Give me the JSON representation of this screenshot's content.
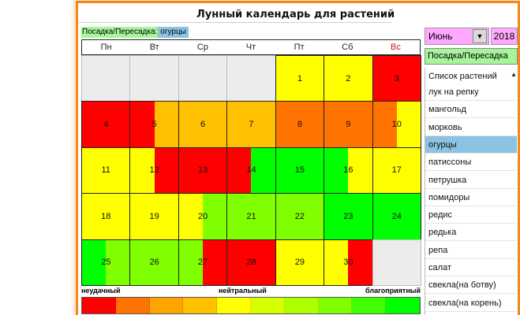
{
  "title": "Лунный календарь для растений",
  "action_row": {
    "action_label": "Посадка/Пересадка:",
    "plant_label": "огурцы"
  },
  "month_select": {
    "value": "Июнь"
  },
  "year_field": {
    "value": "2018"
  },
  "action_button": {
    "label": "Посадка/Пересадка"
  },
  "weekdays": [
    "Пн",
    "Вт",
    "Ср",
    "Чт",
    "Пт",
    "Сб",
    "Вс"
  ],
  "weeks": [
    [
      null,
      null,
      null,
      null,
      {
        "day": "1",
        "fill": [
          "#ffff00"
        ]
      },
      {
        "day": "2",
        "fill": [
          "#ffff00"
        ]
      },
      {
        "day": "3",
        "fill": [
          "#ff0000"
        ]
      }
    ],
    [
      {
        "day": "4",
        "fill": [
          "#ff0000"
        ]
      },
      {
        "day": "5",
        "fill": [
          "#ff0000",
          "#ffc000"
        ]
      },
      {
        "day": "6",
        "fill": [
          "#ffc000"
        ]
      },
      {
        "day": "7",
        "fill": [
          "#ffc000"
        ]
      },
      {
        "day": "8",
        "fill": [
          "#ff7300"
        ]
      },
      {
        "day": "9",
        "fill": [
          "#ff7300"
        ]
      },
      {
        "day": "10",
        "fill": [
          "#ff7300",
          "#ffff00"
        ]
      }
    ],
    [
      {
        "day": "11",
        "fill": [
          "#ffff00"
        ]
      },
      {
        "day": "12",
        "fill": [
          "#ffff00",
          "#ff0000"
        ]
      },
      {
        "day": "13",
        "fill": [
          "#ff0000"
        ]
      },
      {
        "day": "14",
        "fill": [
          "#ff0000",
          "#00ff00"
        ]
      },
      {
        "day": "15",
        "fill": [
          "#00ff00"
        ]
      },
      {
        "day": "16",
        "fill": [
          "#00ff00",
          "#ffff00"
        ]
      },
      {
        "day": "17",
        "fill": [
          "#ffff00"
        ]
      }
    ],
    [
      {
        "day": "18",
        "fill": [
          "#ffff00"
        ]
      },
      {
        "day": "19",
        "fill": [
          "#ffff00"
        ]
      },
      {
        "day": "20",
        "fill": [
          "#ffff00",
          "#7fff00"
        ]
      },
      {
        "day": "21",
        "fill": [
          "#7fff00"
        ]
      },
      {
        "day": "22",
        "fill": [
          "#7fff00"
        ]
      },
      {
        "day": "23",
        "fill": [
          "#00ff00"
        ]
      },
      {
        "day": "24",
        "fill": [
          "#00ff00"
        ]
      }
    ],
    [
      {
        "day": "25",
        "fill": [
          "#00ff00",
          "#7fff00"
        ]
      },
      {
        "day": "26",
        "fill": [
          "#7fff00"
        ]
      },
      {
        "day": "27",
        "fill": [
          "#7fff00",
          "#ff0000"
        ]
      },
      {
        "day": "28",
        "fill": [
          "#ff0000"
        ]
      },
      {
        "day": "29",
        "fill": [
          "#ffff00"
        ]
      },
      {
        "day": "30",
        "fill": [
          "#ffff00",
          "#ff0000"
        ]
      },
      null
    ]
  ],
  "legend": {
    "bad": "неудачный",
    "neutral": "нейтральный",
    "good": "благоприятный",
    "colors": [
      "#ff0000",
      "#ff7300",
      "#ffa500",
      "#ffc000",
      "#ffff00",
      "#d8ff00",
      "#b0ff00",
      "#7fff00",
      "#40ff00",
      "#00ff00"
    ]
  },
  "plant_list": {
    "header": "Список растений",
    "items": [
      "лук на репку",
      "мангольд",
      "морковь",
      "огурцы",
      "патиссоны",
      "петрушка",
      "помидоры",
      "редис",
      "редька",
      "репа",
      "салат",
      "свекла(на ботву)",
      "свекла(на корень)"
    ],
    "selected": "огурцы"
  },
  "colors": {
    "frame": "#f08a1c",
    "picker": "#ffa8ff",
    "action": "#a6f59a",
    "selection": "#8cc3e2"
  }
}
